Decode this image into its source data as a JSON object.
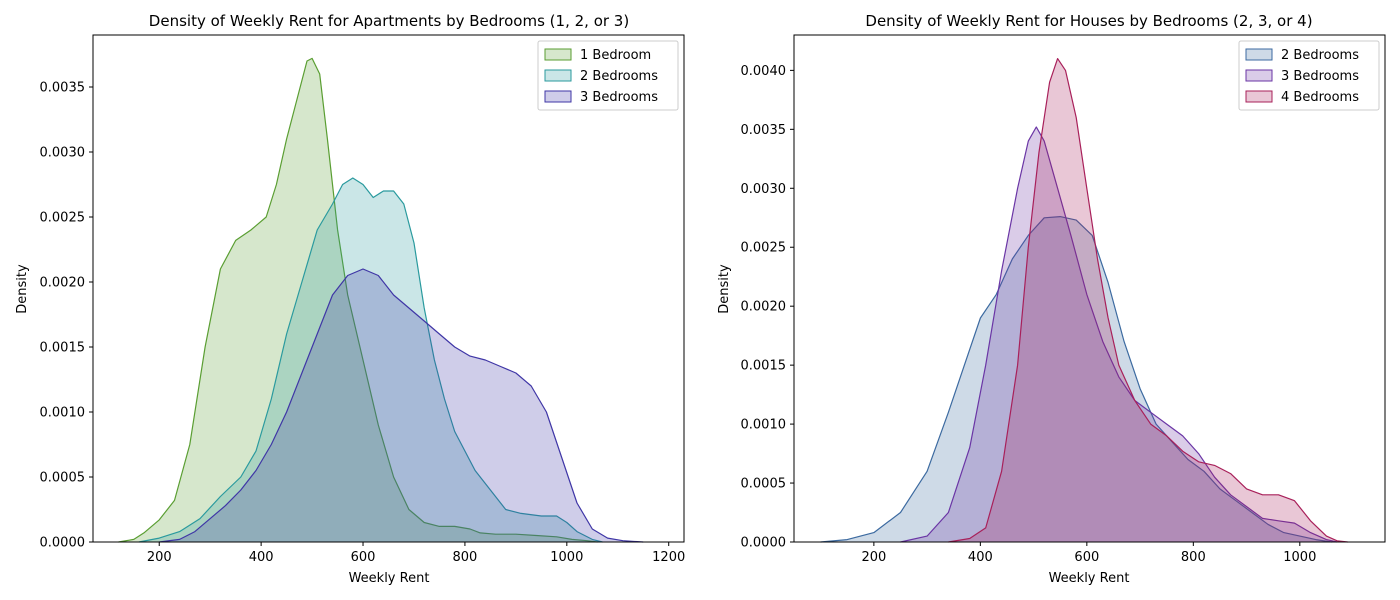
{
  "chart_data": [
    {
      "type": "area",
      "title": "Density of Weekly Rent for Apartments by Bedrooms (1, 2, or 3)",
      "xlabel": "Weekly Rent",
      "ylabel": "Density",
      "xlim": [
        70,
        1230
      ],
      "ylim": [
        0,
        0.0039
      ],
      "xticks": [
        200,
        400,
        600,
        800,
        1000,
        1200
      ],
      "yticks": [
        0,
        0.0005,
        0.001,
        0.0015,
        0.002,
        0.0025,
        0.003,
        0.0035
      ],
      "ytick_labels": [
        "0.0000",
        "0.0005",
        "0.0010",
        "0.0015",
        "0.0020",
        "0.0025",
        "0.0030",
        "0.0035"
      ],
      "legend_position": "top-right",
      "grid": false,
      "series": [
        {
          "name": "1 Bedroom",
          "color": "#5a9e32",
          "fill": "#d5e6c8",
          "points": [
            [
              120,
              0
            ],
            [
              150,
              2e-05
            ],
            [
              170,
              7e-05
            ],
            [
              200,
              0.00017
            ],
            [
              230,
              0.00032
            ],
            [
              260,
              0.00075
            ],
            [
              290,
              0.0015
            ],
            [
              320,
              0.0021
            ],
            [
              350,
              0.00232
            ],
            [
              380,
              0.0024
            ],
            [
              410,
              0.0025
            ],
            [
              430,
              0.00275
            ],
            [
              450,
              0.0031
            ],
            [
              470,
              0.0034
            ],
            [
              490,
              0.0037
            ],
            [
              500,
              0.00372
            ],
            [
              515,
              0.0036
            ],
            [
              530,
              0.0031
            ],
            [
              550,
              0.0024
            ],
            [
              570,
              0.0019
            ],
            [
              600,
              0.0014
            ],
            [
              630,
              0.0009
            ],
            [
              660,
              0.0005
            ],
            [
              690,
              0.00025
            ],
            [
              720,
              0.00015
            ],
            [
              750,
              0.00012
            ],
            [
              780,
              0.00012
            ],
            [
              810,
              0.0001
            ],
            [
              830,
              7e-05
            ],
            [
              860,
              6e-05
            ],
            [
              900,
              6e-05
            ],
            [
              940,
              5e-05
            ],
            [
              980,
              4e-05
            ],
            [
              1010,
              2e-05
            ],
            [
              1040,
              1e-05
            ],
            [
              1060,
              0
            ]
          ]
        },
        {
          "name": "2 Bedrooms",
          "color": "#2a9a9e",
          "fill": "#c8e4e5",
          "points": [
            [
              160,
              0
            ],
            [
              200,
              3e-05
            ],
            [
              240,
              8e-05
            ],
            [
              280,
              0.00018
            ],
            [
              320,
              0.00035
            ],
            [
              360,
              0.0005
            ],
            [
              390,
              0.0007
            ],
            [
              420,
              0.0011
            ],
            [
              450,
              0.0016
            ],
            [
              480,
              0.002
            ],
            [
              510,
              0.0024
            ],
            [
              540,
              0.0026
            ],
            [
              560,
              0.00275
            ],
            [
              580,
              0.0028
            ],
            [
              600,
              0.00275
            ],
            [
              620,
              0.00265
            ],
            [
              640,
              0.0027
            ],
            [
              660,
              0.0027
            ],
            [
              680,
              0.0026
            ],
            [
              700,
              0.0023
            ],
            [
              720,
              0.0018
            ],
            [
              740,
              0.0014
            ],
            [
              760,
              0.0011
            ],
            [
              780,
              0.00085
            ],
            [
              800,
              0.0007
            ],
            [
              820,
              0.00055
            ],
            [
              850,
              0.0004
            ],
            [
              880,
              0.00025
            ],
            [
              910,
              0.00022
            ],
            [
              950,
              0.0002
            ],
            [
              980,
              0.0002
            ],
            [
              1000,
              0.00015
            ],
            [
              1020,
              8e-05
            ],
            [
              1050,
              2e-05
            ],
            [
              1070,
              0
            ]
          ]
        },
        {
          "name": "3 Bedrooms",
          "color": "#3f36a6",
          "fill": "#cac4e5",
          "points": [
            [
              200,
              0
            ],
            [
              240,
              2e-05
            ],
            [
              270,
              8e-05
            ],
            [
              300,
              0.00018
            ],
            [
              330,
              0.00028
            ],
            [
              360,
              0.0004
            ],
            [
              390,
              0.00055
            ],
            [
              420,
              0.00075
            ],
            [
              450,
              0.001
            ],
            [
              480,
              0.0013
            ],
            [
              510,
              0.0016
            ],
            [
              540,
              0.0019
            ],
            [
              570,
              0.00205
            ],
            [
              600,
              0.0021
            ],
            [
              630,
              0.00205
            ],
            [
              660,
              0.0019
            ],
            [
              690,
              0.0018
            ],
            [
              720,
              0.0017
            ],
            [
              750,
              0.0016
            ],
            [
              780,
              0.0015
            ],
            [
              810,
              0.00143
            ],
            [
              840,
              0.0014
            ],
            [
              870,
              0.00135
            ],
            [
              900,
              0.0013
            ],
            [
              930,
              0.0012
            ],
            [
              960,
              0.001
            ],
            [
              990,
              0.00065
            ],
            [
              1020,
              0.0003
            ],
            [
              1050,
              0.0001
            ],
            [
              1080,
              3e-05
            ],
            [
              1110,
              1e-05
            ],
            [
              1150,
              0
            ]
          ]
        }
      ]
    },
    {
      "type": "area",
      "title": "Density of Weekly Rent for Houses by Bedrooms (2, 3, or 4)",
      "xlabel": "Weekly Rent",
      "ylabel": "Density",
      "xlim": [
        50,
        1160
      ],
      "ylim": [
        0,
        0.0043
      ],
      "xticks": [
        200,
        400,
        600,
        800,
        1000
      ],
      "yticks": [
        0,
        0.0005,
        0.001,
        0.0015,
        0.002,
        0.0025,
        0.003,
        0.0035,
        0.004
      ],
      "ytick_labels": [
        "0.0000",
        "0.0005",
        "0.0010",
        "0.0015",
        "0.0020",
        "0.0025",
        "0.0030",
        "0.0035",
        "0.0040"
      ],
      "legend_position": "top-right",
      "grid": false,
      "series": [
        {
          "name": "2 Bedrooms",
          "color": "#3c6aa0",
          "fill": "#c6d3e2",
          "points": [
            [
              100,
              0
            ],
            [
              150,
              2e-05
            ],
            [
              200,
              8e-05
            ],
            [
              250,
              0.00025
            ],
            [
              300,
              0.0006
            ],
            [
              340,
              0.0011
            ],
            [
              370,
              0.0015
            ],
            [
              400,
              0.0019
            ],
            [
              430,
              0.0021
            ],
            [
              460,
              0.0024
            ],
            [
              490,
              0.0026
            ],
            [
              520,
              0.00275
            ],
            [
              550,
              0.00276
            ],
            [
              580,
              0.00273
            ],
            [
              610,
              0.0026
            ],
            [
              640,
              0.0022
            ],
            [
              670,
              0.0017
            ],
            [
              700,
              0.0013
            ],
            [
              730,
              0.001
            ],
            [
              760,
              0.00085
            ],
            [
              790,
              0.0007
            ],
            [
              820,
              0.0006
            ],
            [
              850,
              0.00045
            ],
            [
              880,
              0.00035
            ],
            [
              910,
              0.00025
            ],
            [
              940,
              0.00015
            ],
            [
              970,
              8e-05
            ],
            [
              1000,
              5e-05
            ],
            [
              1030,
              2e-05
            ],
            [
              1060,
              0
            ]
          ]
        },
        {
          "name": "3 Bedrooms",
          "color": "#6a35a5",
          "fill": "#d6c6e5",
          "points": [
            [
              250,
              0
            ],
            [
              300,
              5e-05
            ],
            [
              340,
              0.00025
            ],
            [
              380,
              0.0008
            ],
            [
              410,
              0.0015
            ],
            [
              440,
              0.0023
            ],
            [
              470,
              0.003
            ],
            [
              490,
              0.0034
            ],
            [
              505,
              0.00352
            ],
            [
              520,
              0.0034
            ],
            [
              545,
              0.003
            ],
            [
              570,
              0.0026
            ],
            [
              600,
              0.0021
            ],
            [
              630,
              0.0017
            ],
            [
              660,
              0.0014
            ],
            [
              690,
              0.0012
            ],
            [
              720,
              0.0011
            ],
            [
              750,
              0.001
            ],
            [
              780,
              0.0009
            ],
            [
              810,
              0.00075
            ],
            [
              840,
              0.00055
            ],
            [
              870,
              0.0004
            ],
            [
              900,
              0.0003
            ],
            [
              930,
              0.0002
            ],
            [
              960,
              0.00018
            ],
            [
              990,
              0.00016
            ],
            [
              1020,
              8e-05
            ],
            [
              1050,
              2e-05
            ],
            [
              1070,
              0
            ]
          ]
        },
        {
          "name": "4 Bedrooms",
          "color": "#a8205a",
          "fill": "#e5c6d3",
          "points": [
            [
              340,
              0
            ],
            [
              380,
              3e-05
            ],
            [
              410,
              0.00012
            ],
            [
              440,
              0.0006
            ],
            [
              470,
              0.0015
            ],
            [
              490,
              0.0025
            ],
            [
              510,
              0.0033
            ],
            [
              530,
              0.0039
            ],
            [
              545,
              0.0041
            ],
            [
              560,
              0.004
            ],
            [
              580,
              0.0036
            ],
            [
              600,
              0.003
            ],
            [
              620,
              0.0024
            ],
            [
              640,
              0.0019
            ],
            [
              660,
              0.0015
            ],
            [
              690,
              0.0012
            ],
            [
              720,
              0.001
            ],
            [
              750,
              0.0009
            ],
            [
              780,
              0.00077
            ],
            [
              810,
              0.00068
            ],
            [
              840,
              0.00065
            ],
            [
              870,
              0.00058
            ],
            [
              900,
              0.00045
            ],
            [
              930,
              0.0004
            ],
            [
              960,
              0.0004
            ],
            [
              990,
              0.00035
            ],
            [
              1020,
              0.00018
            ],
            [
              1050,
              5e-05
            ],
            [
              1070,
              1e-05
            ],
            [
              1090,
              0
            ]
          ]
        }
      ]
    }
  ]
}
